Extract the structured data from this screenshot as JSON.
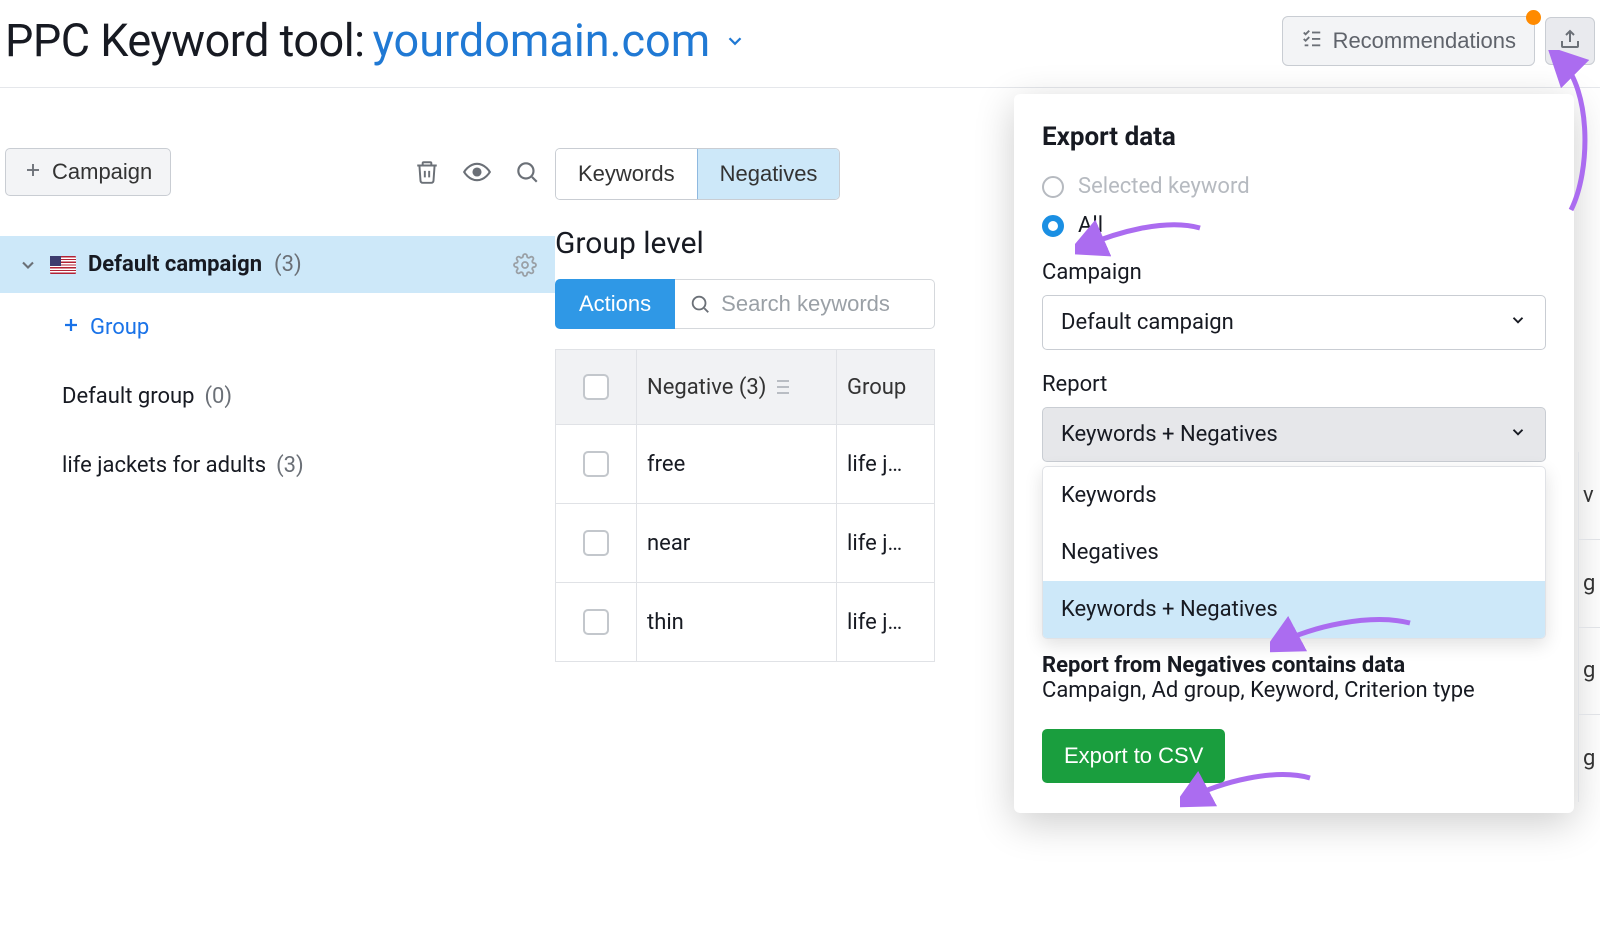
{
  "header": {
    "title": "PPC Keyword tool:",
    "domain": "yourdomain.com",
    "recommendations_label": "Recommendations"
  },
  "sidebar": {
    "add_campaign_label": "Campaign",
    "campaign": {
      "name": "Default campaign",
      "count": "(3)"
    },
    "add_group_label": "Group",
    "groups": [
      {
        "name": "Default group",
        "count": "(0)"
      },
      {
        "name": "life jackets for adults",
        "count": "(3)"
      }
    ]
  },
  "main": {
    "tabs": {
      "keywords": "Keywords",
      "negatives": "Negatives"
    },
    "section_title": "Group level",
    "actions_label": "Actions",
    "search_placeholder": "Search keywords",
    "table": {
      "col_negative": "Negative (3)",
      "col_group": "Group",
      "rows": [
        {
          "neg": "free",
          "grp": "life j…"
        },
        {
          "neg": "near",
          "grp": "life j…"
        },
        {
          "neg": "thin",
          "grp": "life j…"
        }
      ]
    }
  },
  "popover": {
    "title": "Export data",
    "radio_selected": "Selected keyword",
    "radio_all": "All",
    "campaign_label": "Campaign",
    "campaign_value": "Default campaign",
    "report_label": "Report",
    "report_value": "Keywords + Negatives",
    "dropdown_items": [
      "Keywords",
      "Negatives",
      "Keywords + Negatives"
    ],
    "note_bold": "Report from Negatives contains data",
    "note_rest": "Campaign, Ad group, Keyword, Criterion type",
    "export_btn": "Export to CSV"
  },
  "peek": [
    "v",
    "g",
    "g",
    "g"
  ],
  "colors": {
    "accent_blue": "#2f98e6",
    "link_blue": "#2079d4",
    "selected_bg": "#cde8f9",
    "green": "#1a9e3e",
    "purple": "#ab6cf0",
    "orange_dot": "#ff8a00"
  }
}
